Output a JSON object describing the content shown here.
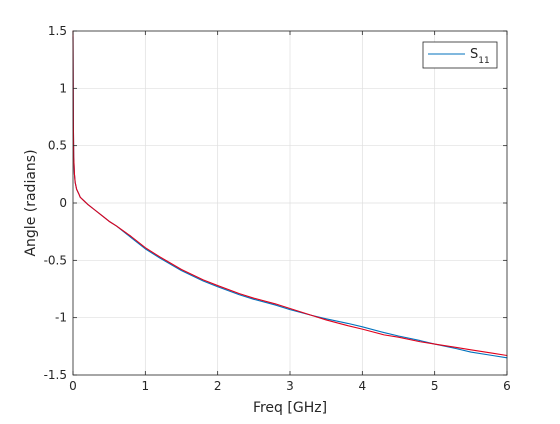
{
  "chart_data": {
    "type": "line",
    "title": "",
    "xlabel": "Freq [GHz]",
    "ylabel": "Angle (radians)",
    "xlim": [
      0,
      6
    ],
    "ylim": [
      -1.5,
      1.5
    ],
    "xticks": [
      0,
      1,
      2,
      3,
      4,
      5,
      6
    ],
    "yticks": [
      1.5,
      1,
      0.5,
      0,
      -0.5,
      -1,
      -1.5
    ],
    "xtick_labels": [
      "0",
      "1",
      "2",
      "3",
      "4",
      "5",
      "6"
    ],
    "ytick_labels": [
      "1.5",
      "1",
      "0.5",
      "0",
      "-0.5",
      "-1",
      "-1.5"
    ],
    "grid": true,
    "legend": {
      "position": "top-right",
      "entries": [
        {
          "label_main": "S",
          "label_sub": "11",
          "color": "#0072BD"
        }
      ]
    },
    "series": [
      {
        "name": "S11",
        "color": "#0072BD",
        "x": [
          0.0,
          0.005,
          0.01,
          0.02,
          0.03,
          0.05,
          0.08,
          0.1,
          0.15,
          0.2,
          0.3,
          0.4,
          0.5,
          0.6,
          0.8,
          1.0,
          1.2,
          1.5,
          1.8,
          2.0,
          2.3,
          2.5,
          2.8,
          3.0,
          3.3,
          3.5,
          3.8,
          4.0,
          4.3,
          4.5,
          4.8,
          5.0,
          5.3,
          5.5,
          5.8,
          6.0
        ],
        "y": [
          1.45,
          0.7,
          0.4,
          0.25,
          0.18,
          0.12,
          0.08,
          0.05,
          0.02,
          -0.01,
          -0.06,
          -0.11,
          -0.16,
          -0.2,
          -0.3,
          -0.4,
          -0.48,
          -0.59,
          -0.68,
          -0.73,
          -0.8,
          -0.84,
          -0.89,
          -0.93,
          -0.98,
          -1.01,
          -1.05,
          -1.08,
          -1.13,
          -1.16,
          -1.2,
          -1.23,
          -1.27,
          -1.3,
          -1.33,
          -1.35
        ]
      },
      {
        "name": "",
        "color": "#e0001b",
        "x": [
          0.0,
          0.005,
          0.01,
          0.02,
          0.03,
          0.05,
          0.08,
          0.1,
          0.15,
          0.2,
          0.3,
          0.4,
          0.5,
          0.6,
          0.8,
          1.0,
          1.2,
          1.5,
          1.8,
          2.0,
          2.3,
          2.5,
          2.8,
          3.0,
          3.3,
          3.5,
          3.8,
          4.0,
          4.3,
          4.5,
          4.8,
          5.0,
          5.3,
          5.5,
          5.8,
          6.0
        ],
        "y": [
          1.5,
          0.7,
          0.4,
          0.25,
          0.18,
          0.12,
          0.08,
          0.05,
          0.02,
          -0.01,
          -0.06,
          -0.11,
          -0.16,
          -0.2,
          -0.29,
          -0.39,
          -0.47,
          -0.58,
          -0.67,
          -0.72,
          -0.79,
          -0.83,
          -0.88,
          -0.92,
          -0.98,
          -1.02,
          -1.07,
          -1.1,
          -1.15,
          -1.17,
          -1.21,
          -1.23,
          -1.26,
          -1.28,
          -1.31,
          -1.33
        ]
      }
    ]
  }
}
